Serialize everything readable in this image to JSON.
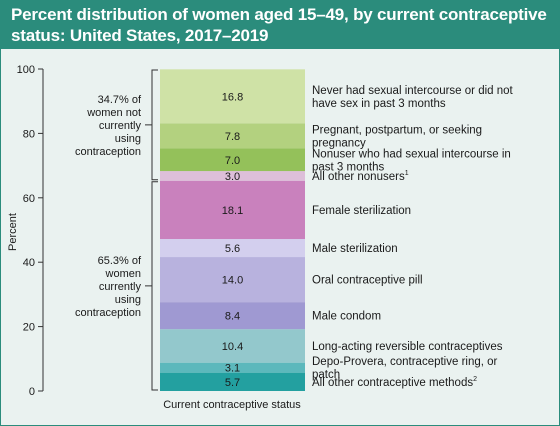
{
  "title": "Percent distribution of women aged 15–49, by current contraceptive status: United States, 2017–2019",
  "colors": {
    "header": "#2b8c7c",
    "background": "#eaf2f0"
  },
  "chart_data": {
    "type": "bar",
    "stacked": true,
    "categories": [
      "Current contraceptive status"
    ],
    "xlabel": "Current contraceptive status",
    "ylabel": "Percent",
    "ylim": [
      0,
      100
    ],
    "yticks": [
      0,
      20,
      40,
      60,
      80,
      100
    ],
    "segments": [
      {
        "label": "5.7",
        "value": 5.7,
        "legend": "All other contraceptive methods",
        "sup": "2",
        "color": "#23a0a0"
      },
      {
        "label": "3.1",
        "value": 3.1,
        "legend": "Depo-Provera, contraceptive ring, or patch",
        "sup": "",
        "color": "#5cb8bc"
      },
      {
        "label": "10.4",
        "value": 10.4,
        "legend": "Long-acting reversible contraceptives",
        "sup": "",
        "color": "#93c8cc"
      },
      {
        "label": "8.4",
        "value": 8.4,
        "legend": "Male condom",
        "sup": "",
        "color": "#9f99d2"
      },
      {
        "label": "14.0",
        "value": 14.0,
        "legend": "Oral contraceptive pill",
        "sup": "",
        "color": "#b8b2de"
      },
      {
        "label": "5.6",
        "value": 5.6,
        "legend": "Male sterilization",
        "sup": "",
        "color": "#d3cfee"
      },
      {
        "label": "18.1",
        "value": 18.1,
        "legend": "Female sterilization",
        "sup": "",
        "color": "#c981bd"
      },
      {
        "label": "3.0",
        "value": 3.0,
        "legend": "All other nonusers",
        "sup": "1",
        "color": "#ddbfd9"
      },
      {
        "label": "7.0",
        "value": 7.0,
        "legend": "Nonuser who had sexual intercourse in past 3 months",
        "sup": "",
        "color": "#94c15a"
      },
      {
        "label": "7.8",
        "value": 7.8,
        "legend": "Pregnant, postpartum, or seeking pregnancy",
        "sup": "",
        "color": "#b3d17f"
      },
      {
        "label": "16.8",
        "value": 16.8,
        "legend": "Never had sexual intercourse or did not have sex in past 3 months",
        "sup": "",
        "color": "#cfe2a6"
      }
    ],
    "groups": [
      {
        "lines": [
          "34.7% of",
          "women not",
          "currently",
          "using",
          "contraception"
        ],
        "from": 65.3,
        "to": 100
      },
      {
        "lines": [
          "65.3% of",
          "women",
          "currently",
          "using",
          "contraception"
        ],
        "from": 0,
        "to": 65.3
      }
    ]
  }
}
